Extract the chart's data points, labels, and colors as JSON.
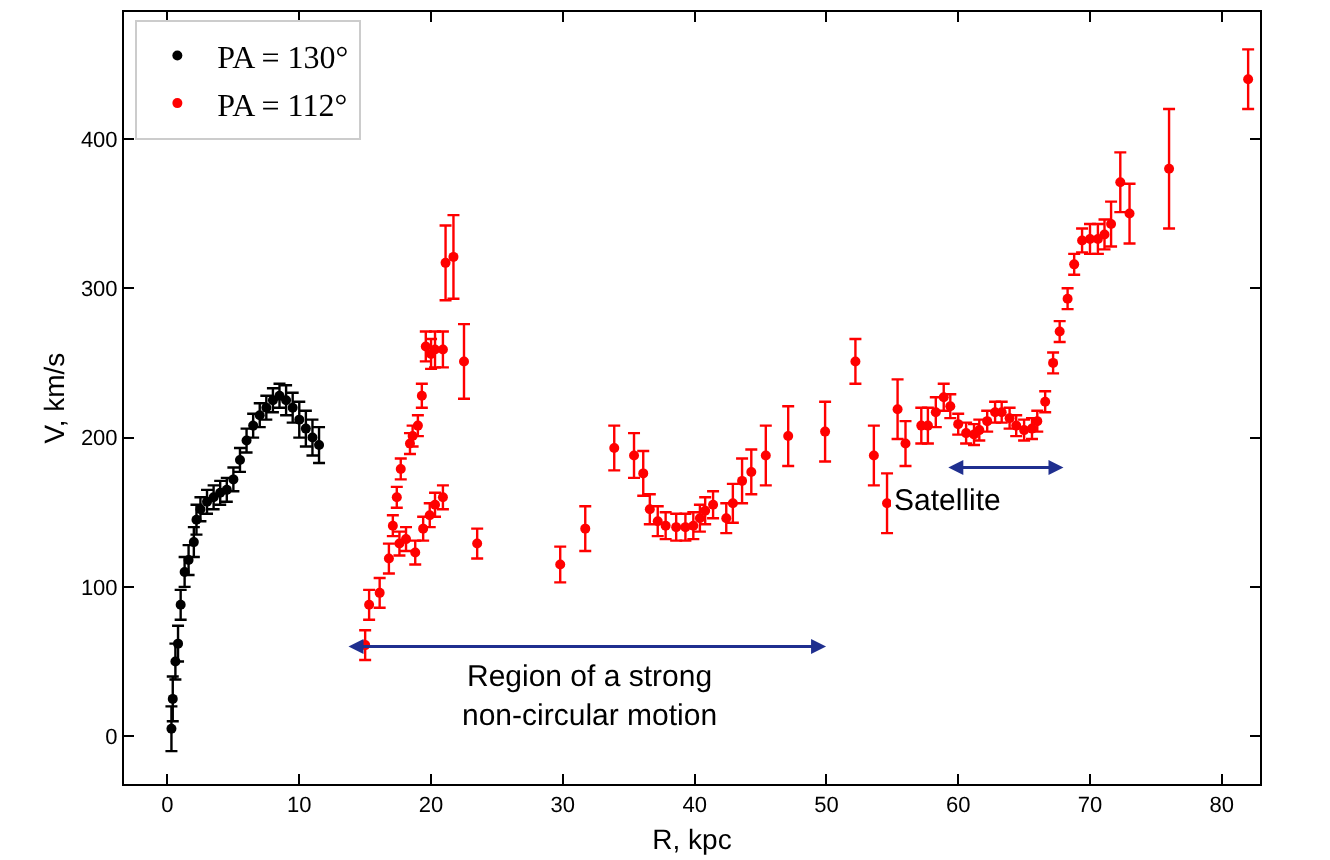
{
  "chart_data": {
    "type": "scatter",
    "xlabel": "R, kpc",
    "ylabel": "V, km/s",
    "xlim": [
      -3.3,
      82.9
    ],
    "ylim": [
      -32,
      485
    ],
    "xticks": [
      0,
      10,
      20,
      30,
      40,
      50,
      60,
      70,
      80
    ],
    "yticks": [
      0,
      100,
      200,
      300,
      400
    ],
    "legend": "top left",
    "marker": "circle",
    "annotations": [
      "Region of a strong\nnon-circular motion",
      "Satellite"
    ],
    "series": [
      {
        "name": "PA = 130°",
        "color": "#000000",
        "x": [
          0.3,
          0.4,
          0.6,
          0.8,
          1.0,
          1.3,
          1.6,
          2.0,
          2.2,
          2.5,
          3.0,
          3.5,
          4.0,
          4.5,
          5.0,
          5.5,
          6.0,
          6.5,
          7.0,
          7.5,
          8.0,
          8.5,
          9.0,
          9.5,
          10.0,
          10.5,
          11.0,
          11.5
        ],
        "values": [
          5,
          25,
          50,
          62,
          88,
          110,
          118,
          130,
          145,
          152,
          157,
          160,
          163,
          165,
          172,
          185,
          198,
          208,
          215,
          220,
          225,
          228,
          225,
          220,
          212,
          206,
          200,
          195
        ],
        "errors": [
          15,
          15,
          12,
          12,
          10,
          10,
          10,
          10,
          10,
          8,
          8,
          8,
          8,
          8,
          8,
          8,
          8,
          8,
          8,
          8,
          8,
          8,
          10,
          10,
          12,
          12,
          12,
          12
        ]
      },
      {
        "name": "PA = 112°",
        "color": "#ff0000",
        "x": [
          15.0,
          15.3,
          16.1,
          16.8,
          17.1,
          17.4,
          17.6,
          17.7,
          18.1,
          18.4,
          18.6,
          18.8,
          19.0,
          19.3,
          19.4,
          19.6,
          19.9,
          20.0,
          20.3,
          20.3,
          20.9,
          20.9,
          21.1,
          21.7,
          22.5,
          23.5,
          29.8,
          31.7,
          33.9,
          35.4,
          36.1,
          36.6,
          37.2,
          37.8,
          38.6,
          39.3,
          39.9,
          40.4,
          40.8,
          41.4,
          42.4,
          42.9,
          43.6,
          44.3,
          45.4,
          47.1,
          49.9,
          52.2,
          53.6,
          54.6,
          55.4,
          56.0,
          57.2,
          57.7,
          58.3,
          58.9,
          59.4,
          60.0,
          60.6,
          61.2,
          61.6,
          62.2,
          62.8,
          63.3,
          63.9,
          64.4,
          65.0,
          65.6,
          66.0,
          66.6,
          67.2,
          67.7,
          68.3,
          68.8,
          69.4,
          70.0,
          70.6,
          71.1,
          71.6,
          72.3,
          73.0,
          76.0,
          82.0
        ],
        "values": [
          61,
          88,
          96,
          119,
          141,
          160,
          129,
          179,
          132,
          196,
          201,
          123,
          208,
          228,
          139,
          261,
          148,
          256,
          155,
          259,
          160,
          259,
          317,
          321,
          251,
          129,
          115,
          139,
          193,
          188,
          176,
          152,
          144,
          141,
          140,
          140,
          141,
          146,
          151,
          155,
          146,
          156,
          171,
          177,
          188,
          201,
          204,
          251,
          188,
          156,
          219,
          196,
          208,
          208,
          217,
          227,
          221,
          209,
          203,
          202,
          205,
          211,
          217,
          217,
          213,
          208,
          205,
          206,
          211,
          224,
          250,
          271,
          293,
          316,
          332,
          333,
          333,
          336,
          343,
          371,
          350,
          380,
          440
        ],
        "errors": [
          10,
          10,
          10,
          10,
          7,
          7,
          8,
          7,
          8,
          7,
          7,
          8,
          7,
          8,
          8,
          10,
          8,
          10,
          8,
          12,
          8,
          12,
          25,
          28,
          25,
          10,
          12,
          15,
          15,
          15,
          15,
          10,
          10,
          9,
          9,
          9,
          9,
          9,
          9,
          9,
          10,
          13,
          15,
          15,
          20,
          20,
          20,
          15,
          20,
          20,
          20,
          15,
          12,
          12,
          10,
          9,
          8,
          7,
          7,
          7,
          7,
          7,
          7,
          7,
          7,
          7,
          7,
          7,
          7,
          7,
          7,
          7,
          7,
          7,
          8,
          10,
          10,
          10,
          15,
          20,
          20,
          40,
          20
        ]
      }
    ]
  }
}
